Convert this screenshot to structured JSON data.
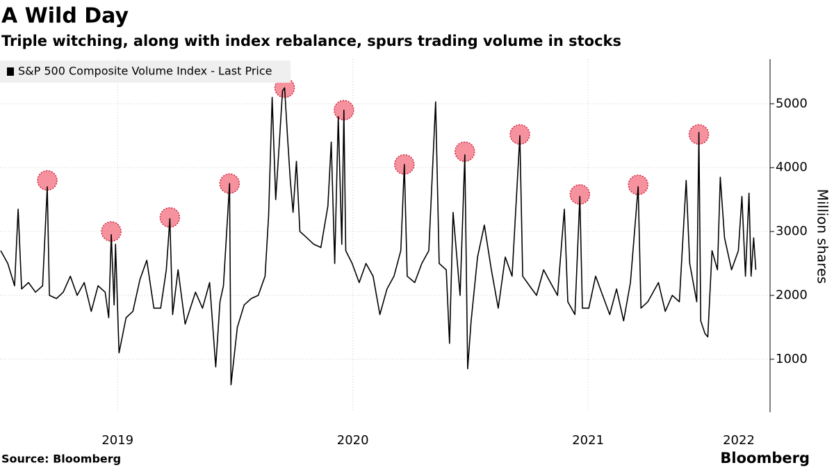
{
  "chart_data": {
    "type": "line",
    "title": "A Wild Day",
    "subtitle": "Triple witching, along with index rebalance, spurs trading volume in stocks",
    "y_label": "Million shares",
    "source": "Source: Bloomberg",
    "logo": "Bloomberg",
    "legend": "top-left",
    "grid": true,
    "xlim": [
      2018.5,
      2021.75
    ],
    "xticks": [
      {
        "value": 2019,
        "label": "2019"
      },
      {
        "value": 2020,
        "label": "2020"
      },
      {
        "value": 2021,
        "label": "2021"
      },
      {
        "value": 2022,
        "label": "2022"
      }
    ],
    "ylim": [
      170,
      5700
    ],
    "yticks": [
      1000,
      2000,
      3000,
      4000,
      5000
    ],
    "series": [
      {
        "name": "S&P 500 Composite Volume Index - Last Price",
        "color": "#000000",
        "x": [
          2018.503,
          2018.533,
          2018.562,
          2018.577,
          2018.592,
          2018.621,
          2018.651,
          2018.681,
          2018.701,
          2018.71,
          2018.74,
          2018.769,
          2018.799,
          2018.828,
          2018.858,
          2018.888,
          2018.917,
          2018.947,
          2018.962,
          2018.973,
          2018.985,
          2018.991,
          2019.006,
          2019.036,
          2019.065,
          2019.095,
          2019.124,
          2019.154,
          2019.183,
          2019.207,
          2019.222,
          2019.234,
          2019.257,
          2019.287,
          2019.331,
          2019.361,
          2019.391,
          2019.417,
          2019.435,
          2019.45,
          2019.476,
          2019.482,
          2019.509,
          2019.538,
          2019.568,
          2019.598,
          2019.627,
          2019.642,
          2019.657,
          2019.672,
          2019.686,
          2019.701,
          2019.71,
          2019.722,
          2019.734,
          2019.746,
          2019.76,
          2019.775,
          2019.805,
          2019.834,
          2019.864,
          2019.894,
          2019.908,
          2019.923,
          2019.938,
          2019.953,
          2019.962,
          2019.97,
          2019.997,
          2020.027,
          2020.056,
          2020.086,
          2020.115,
          2020.145,
          2020.175,
          2020.204,
          2020.219,
          2020.231,
          2020.263,
          2020.293,
          2020.323,
          2020.352,
          2020.367,
          2020.397,
          2020.411,
          2020.426,
          2020.456,
          2020.476,
          2020.488,
          2020.503,
          2020.53,
          2020.559,
          2020.589,
          2020.618,
          2020.648,
          2020.677,
          2020.71,
          2020.722,
          2020.751,
          2020.781,
          2020.811,
          2020.84,
          2020.87,
          2020.899,
          2020.914,
          2020.944,
          2020.965,
          2020.976,
          2021.003,
          2021.032,
          2021.062,
          2021.092,
          2021.121,
          2021.151,
          2021.18,
          2021.213,
          2021.225,
          2021.254,
          2021.299,
          2021.328,
          2021.358,
          2021.388,
          2021.417,
          2021.432,
          2021.462,
          2021.471,
          2021.479,
          2021.497,
          2021.509,
          2021.527,
          2021.55,
          2021.562,
          2021.58,
          2021.61,
          2021.639,
          2021.654,
          2021.669,
          2021.684,
          2021.693,
          2021.704,
          2021.713
        ],
        "values": [
          2700,
          2500,
          2150,
          3350,
          2100,
          2200,
          2050,
          2150,
          3700,
          2000,
          1950,
          2050,
          2300,
          2000,
          2200,
          1750,
          2150,
          2050,
          1650,
          2950,
          1850,
          2800,
          1100,
          1650,
          1750,
          2250,
          2550,
          1800,
          1800,
          2400,
          3200,
          1700,
          2400,
          1550,
          2050,
          1800,
          2200,
          880,
          1900,
          2150,
          3750,
          600,
          1500,
          1850,
          1950,
          2000,
          2300,
          3250,
          5100,
          3500,
          4300,
          5200,
          5250,
          4500,
          3800,
          3300,
          4100,
          3000,
          2900,
          2800,
          2750,
          3400,
          4400,
          2500,
          4800,
          2800,
          4900,
          2700,
          2500,
          2200,
          2500,
          2300,
          1700,
          2100,
          2300,
          2700,
          4050,
          2300,
          2200,
          2500,
          2700,
          5030,
          2500,
          2400,
          1250,
          3300,
          2000,
          4200,
          850,
          1600,
          2600,
          3100,
          2400,
          1800,
          2600,
          2300,
          4500,
          2300,
          2150,
          2000,
          2400,
          2200,
          2000,
          3350,
          1900,
          1700,
          3550,
          1800,
          1800,
          2300,
          2000,
          1700,
          2100,
          1600,
          2200,
          3700,
          1800,
          1900,
          2200,
          1750,
          2000,
          1900,
          3800,
          2500,
          1900,
          4550,
          1600,
          1400,
          1350,
          2700,
          2400,
          3850,
          2900,
          2400,
          2700,
          3550,
          2300,
          3600,
          2300,
          2900,
          2400
        ]
      }
    ],
    "highlights": {
      "color": "#f26d7d",
      "x": [
        2018.701,
        2018.973,
        2019.222,
        2019.476,
        2019.71,
        2019.962,
        2020.219,
        2020.476,
        2020.71,
        2020.965,
        2021.213,
        2021.471
      ],
      "values": [
        3800,
        3000,
        3220,
        3750,
        5250,
        4900,
        4050,
        4250,
        4520,
        3580,
        3730,
        4520
      ]
    }
  }
}
